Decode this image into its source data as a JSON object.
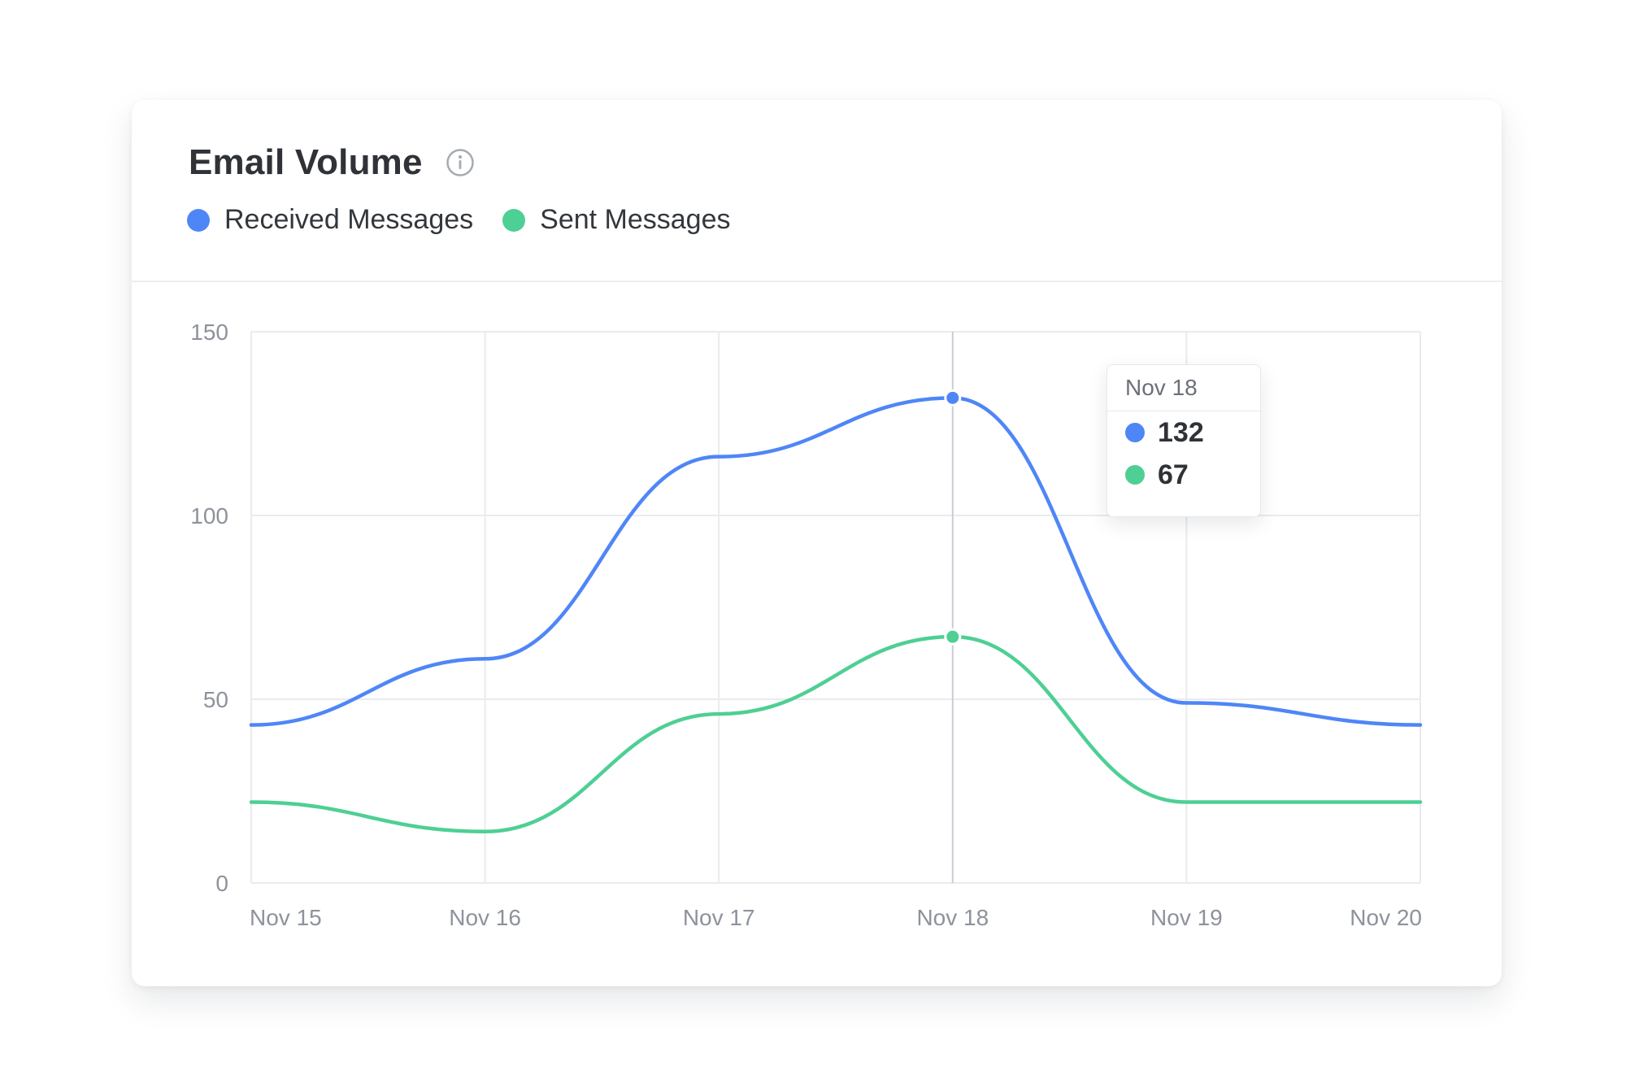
{
  "card": {
    "title": "Email Volume",
    "info_icon": "info-icon"
  },
  "legend": [
    {
      "label": "Received Messages",
      "color": "#4f86f7"
    },
    {
      "label": "Sent Messages",
      "color": "#4ecf94"
    }
  ],
  "tooltip": {
    "date": "Nov 18",
    "rows": [
      {
        "value": "132",
        "color": "#4f86f7"
      },
      {
        "value": "67",
        "color": "#4ecf94"
      }
    ]
  },
  "chart_data": {
    "type": "line",
    "title": "Email Volume",
    "x": [
      "Nov 15",
      "Nov 16",
      "Nov 17",
      "Nov 18",
      "Nov 19",
      "Nov 20"
    ],
    "y_ticks": [
      "0",
      "50",
      "100",
      "150"
    ],
    "ylim": [
      0,
      150
    ],
    "grid": true,
    "legend_placement": "top-left",
    "series": [
      {
        "name": "Received Messages",
        "color": "#4f86f7",
        "values": [
          43,
          61,
          116,
          132,
          49,
          43
        ]
      },
      {
        "name": "Sent Messages",
        "color": "#4ecf94",
        "values": [
          22,
          14,
          46,
          67,
          22,
          22
        ]
      }
    ],
    "highlight_index": 3
  }
}
